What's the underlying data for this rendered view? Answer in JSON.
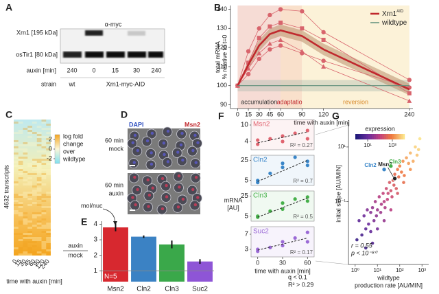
{
  "panel_labels": [
    "A",
    "B",
    "C",
    "D",
    "E",
    "F",
    "G"
  ],
  "blot": {
    "antibody": "α-myc",
    "rows": [
      "Xrn1 [195 kDa]",
      "osTir1 [80 kDa]"
    ],
    "auxin_label": "auxin [min]",
    "auxin": [
      "240",
      "0",
      "15",
      "30",
      "240"
    ],
    "strain_label": "strain",
    "strains": [
      "wt",
      "Xrn1-myc-AID"
    ]
  },
  "heatmap": {
    "ylabel": "4632 transcripts",
    "xticks": [
      "0",
      "15",
      "30",
      "45",
      "60",
      "90",
      "120",
      "240"
    ],
    "xlabel": "time with auxin [min]",
    "colorbar_label": [
      "log fold",
      "change",
      "over",
      "wildtype"
    ],
    "colorbar_lim": [
      -3,
      3
    ],
    "colorbar_ticks": [
      2,
      0,
      -2
    ]
  },
  "micrographs": {
    "channels": [
      "DAPI",
      "Msn2"
    ],
    "conditions": [
      [
        "60 min",
        "mock"
      ],
      [
        "60 min",
        "auxin"
      ]
    ],
    "annotation": "mol/nuc"
  },
  "chart_data": [
    {
      "type": "line",
      "ylabel": [
        "total mRNA",
        "% relative to t=0"
      ],
      "xlabel": "time with auxin [min]",
      "x": [
        0,
        15,
        30,
        45,
        60,
        90,
        120,
        240
      ],
      "xticks": [
        0,
        15,
        30,
        45,
        60,
        90,
        120,
        240
      ],
      "xlim": [
        -10,
        245
      ],
      "ylim": [
        88,
        142
      ],
      "yticks": [
        90,
        100,
        110,
        120,
        130,
        140
      ],
      "phases": [
        {
          "label": "accumulation",
          "start": 0,
          "end": 60,
          "color": "#f6dcd5",
          "text_color": "#333333"
        },
        {
          "label": "adaptation",
          "start": 60,
          "end": 90,
          "color": "#f9e0cb",
          "text_color": "#c0282d"
        },
        {
          "label": "reversion",
          "start": 90,
          "end": 240,
          "color": "#fcf2d8",
          "text_color": "#d98a2b"
        }
      ],
      "series": [
        {
          "name": "Xrn1",
          "name_sup": "AID",
          "color": "#c0282d",
          "values": [
            100,
            111,
            121,
            127,
            129,
            126,
            119,
            98
          ],
          "lower": [
            100,
            109,
            118,
            124,
            126,
            123,
            116,
            95
          ],
          "upper": [
            100,
            113,
            124,
            130,
            132,
            129,
            122,
            101
          ]
        },
        {
          "name": "wildtype",
          "color": "#5f8f7a",
          "values": [
            100,
            100,
            100,
            100,
            100,
            100,
            100,
            100
          ],
          "lower": [
            97,
            97,
            97,
            97,
            97,
            97,
            97,
            97
          ],
          "upper": [
            103,
            103,
            103,
            103,
            103,
            103,
            103,
            103
          ]
        }
      ],
      "replicates": [
        [
          100,
          118,
          130,
          137,
          140,
          139,
          128,
          103
        ],
        [
          100,
          112,
          125,
          131,
          133,
          130,
          124,
          96
        ],
        [
          100,
          109,
          117,
          122,
          124,
          118,
          110,
          92
        ],
        [
          100,
          106,
          114,
          119,
          121,
          117,
          113,
          99
        ]
      ],
      "replicate_markers": [
        "circle",
        "square",
        "triangle",
        "circle"
      ],
      "replicate_color": "#d8646c",
      "legend": "upper right"
    },
    {
      "type": "bar",
      "ylabel": [
        "auxin",
        "mock"
      ],
      "categories": [
        "Msn2",
        "Cln2",
        "Cln3",
        "Suc2"
      ],
      "values": [
        3.8,
        3.2,
        2.7,
        1.6
      ],
      "errors": [
        0.25,
        0.08,
        0.25,
        0.15
      ],
      "colors": [
        "#d7282f",
        "#3b82c4",
        "#3aa84a",
        "#8e55d6"
      ],
      "ylim": [
        0.3,
        4.2
      ],
      "yticks": [
        1,
        2,
        3,
        4
      ],
      "reference_line": 1,
      "annotation": "N=5"
    },
    {
      "type": "scatter",
      "xlabel": "time with auxin [min]",
      "ylabel": [
        "mRNA",
        "[AU]"
      ],
      "xlim": [
        -8,
        68
      ],
      "xticks": [
        0,
        30,
        60
      ],
      "subplots": [
        {
          "label": "Msn2",
          "color": "#e06470",
          "x": [
            0,
            0,
            15,
            30,
            30,
            45,
            60,
            60
          ],
          "y": [
            3,
            4.5,
            5,
            4,
            6,
            7,
            5,
            8
          ],
          "ylim": [
            1,
            12
          ],
          "yticks": [
            4,
            10
          ],
          "fit": {
            "x": [
              0,
              60
            ],
            "y": [
              3.5,
              7.5
            ]
          },
          "r2": "R² = 0.27"
        },
        {
          "label": "Cln2",
          "color": "#3a86c8",
          "x": [
            0,
            0,
            15,
            30,
            30,
            45,
            60,
            60
          ],
          "y": [
            5,
            3,
            12,
            18,
            22,
            28,
            24,
            20
          ],
          "ylim": [
            0,
            30
          ],
          "yticks": [
            5,
            25
          ],
          "fit": {
            "x": [
              0,
              60
            ],
            "y": [
              4,
              25
            ]
          },
          "r2": "R² = 0.7"
        },
        {
          "label": "Cln3",
          "color": "#46b04a",
          "x": [
            0,
            0,
            15,
            30,
            30,
            45,
            60,
            60
          ],
          "y": [
            5,
            4,
            10,
            12,
            18,
            22,
            20,
            24
          ],
          "ylim": [
            0,
            30
          ],
          "yticks": [
            5,
            25
          ],
          "fit": {
            "x": [
              0,
              60
            ],
            "y": [
              4,
              23
            ]
          },
          "r2": "R² = 0.5"
        },
        {
          "label": "Suc2",
          "color": "#9b6ad6",
          "x": [
            0,
            0,
            15,
            30,
            30,
            45,
            60,
            60
          ],
          "y": [
            2.5,
            3,
            3.5,
            4,
            5,
            6,
            5,
            7.5
          ],
          "ylim": [
            1,
            9
          ],
          "yticks": [
            3,
            7
          ],
          "fit": {
            "x": [
              0,
              60
            ],
            "y": [
              2.8,
              6
            ]
          },
          "r2": "R² = 0.17"
        }
      ]
    },
    {
      "type": "scatter",
      "xscale": "log",
      "yscale": "log",
      "xlabel": [
        "wildtype",
        "production rate [AU/MIN]"
      ],
      "ylabel": "initial slope [AU/MIN]",
      "xlim": [
        0.5,
        2000
      ],
      "ylim": [
        0.0005,
        80
      ],
      "xticks": [
        {
          "value": 1,
          "label": "10⁰"
        },
        {
          "value": 10,
          "label": "10¹"
        },
        {
          "value": 100,
          "label": "10²"
        },
        {
          "value": 1000,
          "label": "10³"
        }
      ],
      "yticks": [
        {
          "value": 0.1,
          "label": "10⁻¹"
        },
        {
          "value": 10,
          "label": "10¹"
        }
      ],
      "x": [
        1.2,
        1.5,
        2,
        2.5,
        3,
        3.5,
        4,
        5,
        5,
        6,
        7,
        8,
        9,
        10,
        12,
        14,
        15,
        18,
        20,
        22,
        25,
        28,
        30,
        35,
        40,
        45,
        50,
        55,
        60,
        70,
        80,
        90,
        100,
        120,
        140,
        160,
        200,
        250,
        300,
        400,
        500,
        600,
        800,
        3,
        6,
        10,
        20,
        40,
        80,
        150,
        300,
        700
      ],
      "y": [
        0.004,
        0.02,
        0.006,
        0.03,
        0.01,
        0.05,
        0.015,
        0.04,
        0.008,
        0.06,
        0.02,
        0.1,
        0.03,
        0.05,
        0.15,
        0.04,
        0.08,
        0.2,
        0.1,
        0.06,
        0.3,
        0.12,
        0.2,
        0.5,
        0.25,
        0.15,
        0.6,
        0.4,
        1,
        0.3,
        1.5,
        0.8,
        2,
        1.2,
        3,
        0.9,
        4,
        2.5,
        6,
        3,
        10,
        5,
        20,
        0.002,
        0.003,
        0.01,
        0.02,
        0.05,
        0.2,
        0.5,
        1.5,
        8
      ],
      "colorbar": {
        "label": "expression",
        "lim": [
          1,
          10000
        ],
        "ticks": [
          {
            "value": 10,
            "label": "10¹"
          },
          {
            "value": 1000,
            "label": "10³"
          }
        ],
        "colors": [
          "#1f1a7a",
          "#6a2c9c",
          "#c2407e",
          "#f07b3f",
          "#fbe38a"
        ]
      },
      "highlights": [
        {
          "label": "Msn2",
          "x": 60,
          "y": 0.7,
          "color": "#222222"
        },
        {
          "label": "Cln2",
          "x": 20,
          "y": 1.5,
          "color": "#3a86c8"
        },
        {
          "label": "Cln3",
          "x": 40,
          "y": 2,
          "color": "#46b04a"
        }
      ],
      "annotations": [
        "r = 0.55",
        "p < 10⁻⁸⁰"
      ],
      "filter": [
        "q < 0.1",
        "R² > 0.29"
      ]
    }
  ]
}
